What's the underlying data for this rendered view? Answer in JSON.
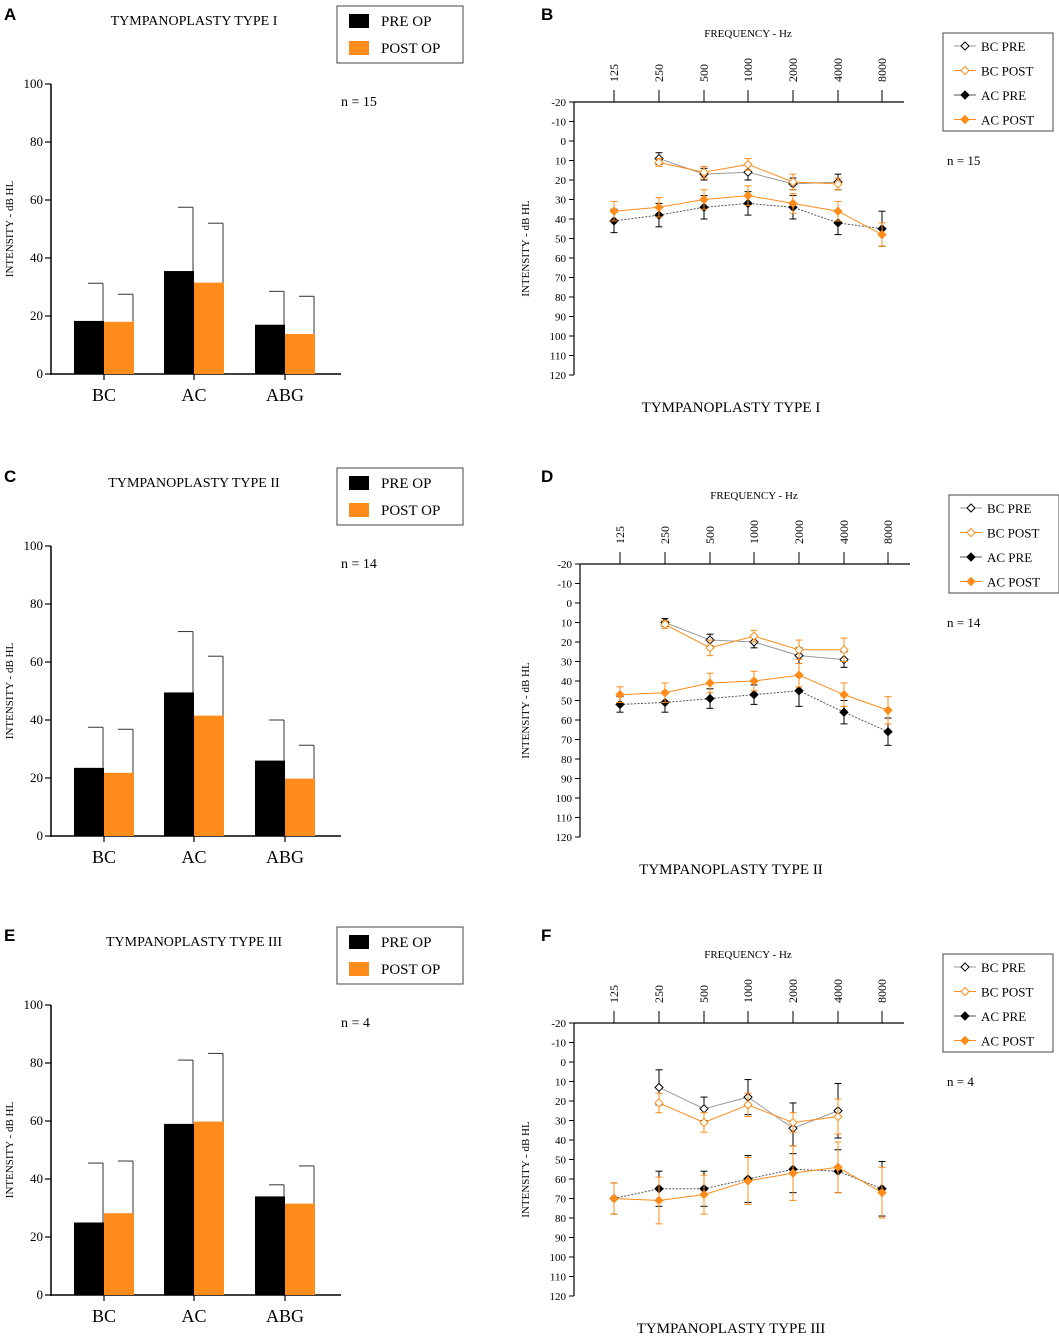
{
  "figure": {
    "panels_letters": [
      "A",
      "B",
      "C",
      "D",
      "E",
      "F"
    ]
  },
  "colors": {
    "pre": "#000000",
    "post": "#ff8c1a",
    "bc_pre_line": "#9a9a9a",
    "post_line": "#ff8c1a"
  },
  "chart_data": [
    {
      "letter": "A",
      "type": "bar",
      "title": "TYMPANOPLASTY TYPE I",
      "ylabel": "INTENSITY - dB HL",
      "ylim": [
        0,
        100
      ],
      "yticks": [
        "0",
        "20",
        "40",
        "60",
        "80",
        "100"
      ],
      "categories": [
        "BC",
        "AC",
        "ABG"
      ],
      "series": [
        {
          "name": "PRE OP",
          "values": [
            18.3,
            35.5,
            17.0
          ],
          "err": [
            13.0,
            22.0,
            11.5
          ]
        },
        {
          "name": "POST OP",
          "values": [
            18.0,
            31.5,
            13.8
          ],
          "err": [
            9.5,
            20.5,
            13.0
          ]
        }
      ],
      "annotation": "n = 15"
    },
    {
      "letter": "B",
      "type": "line",
      "title": "TYMPANOPLASTY TYPE I",
      "xlabel": "FREQUENCY - Hz",
      "ylabel": "INTENSITY - dB HL",
      "x": [
        "125",
        "250",
        "500",
        "1000",
        "2000",
        "4000",
        "8000"
      ],
      "ylim": [
        -20,
        120
      ],
      "yticks": [
        "-20",
        "-10",
        "0",
        "10",
        "20",
        "30",
        "40",
        "50",
        "60",
        "70",
        "80",
        "90",
        "100",
        "110",
        "120"
      ],
      "series": [
        {
          "name": "BC PRE",
          "values": [
            null,
            9,
            17,
            16,
            22,
            21,
            null
          ],
          "err": [
            null,
            3,
            3,
            4,
            3,
            4,
            null
          ]
        },
        {
          "name": "BC POST",
          "values": [
            null,
            11,
            16,
            12,
            21,
            22,
            null
          ],
          "err": [
            null,
            2,
            3,
            3,
            4,
            3,
            null
          ]
        },
        {
          "name": "AC PRE",
          "values": [
            41,
            38,
            34,
            32,
            34,
            42,
            45
          ],
          "err": [
            6,
            6,
            6,
            6,
            6,
            6,
            9
          ]
        },
        {
          "name": "AC POST",
          "values": [
            36,
            34,
            30,
            28,
            32,
            36,
            48
          ],
          "err": [
            5,
            5,
            5,
            5,
            5,
            5,
            6
          ]
        }
      ],
      "annotation": "n = 15"
    },
    {
      "letter": "C",
      "type": "bar",
      "title": "TYMPANOPLASTY TYPE II",
      "ylabel": "INTENSITY - dB HL",
      "ylim": [
        0,
        100
      ],
      "yticks": [
        "0",
        "20",
        "40",
        "60",
        "80",
        "100"
      ],
      "categories": [
        "BC",
        "AC",
        "ABG"
      ],
      "series": [
        {
          "name": "PRE OP",
          "values": [
            23.5,
            49.5,
            26.0
          ],
          "err": [
            14.0,
            21.0,
            14.0
          ]
        },
        {
          "name": "POST OP",
          "values": [
            21.8,
            41.5,
            19.8
          ],
          "err": [
            15.0,
            20.5,
            11.5
          ]
        }
      ],
      "annotation": "n = 14"
    },
    {
      "letter": "D",
      "type": "line",
      "title": "TYMPANOPLASTY TYPE II",
      "xlabel": "FREQUENCY - Hz",
      "ylabel": "INTENSITY - dB HL",
      "x": [
        "125",
        "250",
        "500",
        "1000",
        "2000",
        "4000",
        "8000"
      ],
      "ylim": [
        -20,
        120
      ],
      "yticks": [
        "-20",
        "-10",
        "0",
        "10",
        "20",
        "30",
        "40",
        "50",
        "60",
        "70",
        "80",
        "90",
        "100",
        "110",
        "120"
      ],
      "series": [
        {
          "name": "BC PRE",
          "values": [
            null,
            10,
            19,
            20,
            27,
            29,
            null
          ],
          "err": [
            null,
            2,
            3,
            3,
            4,
            4,
            null
          ]
        },
        {
          "name": "BC POST",
          "values": [
            null,
            11,
            23,
            17,
            24,
            24,
            null
          ],
          "err": [
            null,
            2,
            4,
            3,
            5,
            6,
            null
          ]
        },
        {
          "name": "AC PRE",
          "values": [
            52,
            51,
            49,
            47,
            45,
            56,
            66
          ],
          "err": [
            4,
            5,
            5,
            5,
            8,
            6,
            7
          ]
        },
        {
          "name": "AC POST",
          "values": [
            47,
            46,
            41,
            40,
            37,
            47,
            55
          ],
          "err": [
            4,
            5,
            5,
            5,
            6,
            6,
            7
          ]
        }
      ],
      "annotation": "n = 14"
    },
    {
      "letter": "E",
      "type": "bar",
      "title": "TYMPANOPLASTY TYPE III",
      "ylabel": "INTENSITY - dB HL",
      "ylim": [
        0,
        100
      ],
      "yticks": [
        "0",
        "20",
        "40",
        "60",
        "80",
        "100"
      ],
      "categories": [
        "BC",
        "AC",
        "ABG"
      ],
      "series": [
        {
          "name": "PRE OP",
          "values": [
            25.0,
            59.0,
            34.0
          ],
          "err": [
            20.5,
            22.0,
            4.0
          ]
        },
        {
          "name": "POST OP",
          "values": [
            28.2,
            59.8,
            31.5
          ],
          "err": [
            18.0,
            23.5,
            13.0
          ]
        }
      ],
      "annotation": "n = 4"
    },
    {
      "letter": "F",
      "type": "line",
      "title": "TYMPANOPLASTY TYPE III",
      "xlabel": "FREQUENCY - Hz",
      "ylabel": "INTENSITY - dB HL",
      "x": [
        "125",
        "250",
        "500",
        "1000",
        "2000",
        "4000",
        "8000"
      ],
      "ylim": [
        -20,
        120
      ],
      "yticks": [
        "-20",
        "-10",
        "0",
        "10",
        "20",
        "30",
        "40",
        "50",
        "60",
        "70",
        "80",
        "90",
        "100",
        "110",
        "120"
      ],
      "series": [
        {
          "name": "BC PRE",
          "values": [
            null,
            13,
            24,
            18,
            34,
            25,
            null
          ],
          "err": [
            null,
            9,
            6,
            9,
            13,
            14,
            null
          ]
        },
        {
          "name": "BC POST",
          "values": [
            null,
            21,
            31,
            22,
            31,
            28,
            null
          ],
          "err": [
            null,
            5,
            5,
            6,
            5,
            9,
            null
          ]
        },
        {
          "name": "AC PRE",
          "values": [
            70,
            65,
            65,
            60,
            55,
            56,
            65
          ],
          "err": [
            8,
            9,
            9,
            12,
            12,
            11,
            14
          ]
        },
        {
          "name": "AC POST",
          "values": [
            70,
            71,
            68,
            61,
            57,
            54,
            67
          ],
          "err": [
            8,
            12,
            10,
            12,
            14,
            13,
            13
          ]
        }
      ],
      "annotation": "n = 4"
    }
  ]
}
